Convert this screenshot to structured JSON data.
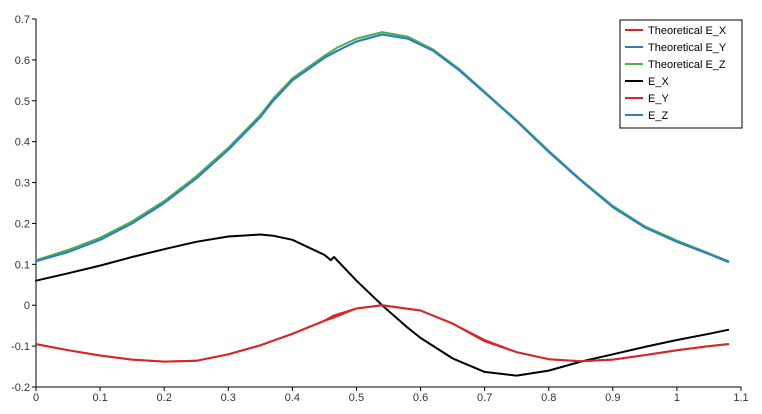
{
  "chart_data": {
    "type": "line",
    "xlim": [
      0,
      1.1
    ],
    "ylim": [
      -0.2,
      0.7
    ],
    "x_ticks": [
      "0",
      "0.1",
      "0.2",
      "0.3",
      "0.4",
      "0.5",
      "0.6",
      "0.7",
      "0.8",
      "0.9",
      "1",
      "1.1"
    ],
    "y_ticks": [
      "-0.2",
      "-0.1",
      "0",
      "0.1",
      "0.2",
      "0.3",
      "0.4",
      "0.5",
      "0.6",
      "0.7"
    ],
    "grid": false,
    "legend_position": "top-right",
    "series": [
      {
        "name": "Theoretical E_X",
        "color": "#d62728",
        "points": [
          [
            0,
            -0.095
          ],
          [
            0.05,
            -0.11
          ],
          [
            0.1,
            -0.123
          ],
          [
            0.15,
            -0.133
          ],
          [
            0.2,
            -0.138
          ],
          [
            0.25,
            -0.136
          ],
          [
            0.3,
            -0.12
          ],
          [
            0.35,
            -0.098
          ],
          [
            0.4,
            -0.07
          ],
          [
            0.45,
            -0.038
          ],
          [
            0.465,
            -0.025
          ],
          [
            0.5,
            -0.008
          ],
          [
            0.54,
            0.0
          ],
          [
            0.6,
            -0.013
          ],
          [
            0.65,
            -0.045
          ],
          [
            0.7,
            -0.085
          ],
          [
            0.75,
            -0.115
          ],
          [
            0.8,
            -0.132
          ],
          [
            0.85,
            -0.137
          ],
          [
            0.9,
            -0.133
          ],
          [
            0.95,
            -0.122
          ],
          [
            1.0,
            -0.11
          ],
          [
            1.05,
            -0.1
          ],
          [
            1.08,
            -0.095
          ]
        ]
      },
      {
        "name": "Theoretical E_Y",
        "color": "#2e7fc2",
        "points": [
          [
            0,
            0.108
          ],
          [
            0.05,
            0.13
          ],
          [
            0.1,
            0.16
          ],
          [
            0.15,
            0.2
          ],
          [
            0.2,
            0.25
          ],
          [
            0.25,
            0.31
          ],
          [
            0.3,
            0.38
          ],
          [
            0.35,
            0.46
          ],
          [
            0.37,
            0.5
          ],
          [
            0.4,
            0.55
          ],
          [
            0.45,
            0.605
          ],
          [
            0.47,
            0.622
          ],
          [
            0.5,
            0.645
          ],
          [
            0.54,
            0.662
          ],
          [
            0.58,
            0.652
          ],
          [
            0.62,
            0.622
          ],
          [
            0.66,
            0.575
          ],
          [
            0.7,
            0.52
          ],
          [
            0.75,
            0.45
          ],
          [
            0.8,
            0.375
          ],
          [
            0.85,
            0.305
          ],
          [
            0.9,
            0.24
          ],
          [
            0.95,
            0.19
          ],
          [
            1.0,
            0.155
          ],
          [
            1.05,
            0.125
          ],
          [
            1.08,
            0.106
          ]
        ]
      },
      {
        "name": "Theoretical E_Z",
        "color": "#4daf4a",
        "points": [
          [
            0,
            0.11
          ],
          [
            0.05,
            0.135
          ],
          [
            0.1,
            0.165
          ],
          [
            0.15,
            0.205
          ],
          [
            0.2,
            0.255
          ],
          [
            0.25,
            0.315
          ],
          [
            0.3,
            0.385
          ],
          [
            0.35,
            0.465
          ],
          [
            0.37,
            0.505
          ],
          [
            0.4,
            0.555
          ],
          [
            0.45,
            0.61
          ],
          [
            0.47,
            0.63
          ],
          [
            0.5,
            0.652
          ],
          [
            0.54,
            0.668
          ],
          [
            0.58,
            0.657
          ],
          [
            0.62,
            0.625
          ],
          [
            0.66,
            0.578
          ],
          [
            0.7,
            0.522
          ],
          [
            0.75,
            0.452
          ],
          [
            0.8,
            0.378
          ],
          [
            0.85,
            0.307
          ],
          [
            0.9,
            0.243
          ],
          [
            0.95,
            0.193
          ],
          [
            1.0,
            0.158
          ],
          [
            1.05,
            0.127
          ],
          [
            1.08,
            0.108
          ]
        ]
      },
      {
        "name": "E_X",
        "color": "#000000",
        "points": [
          [
            0,
            0.06
          ],
          [
            0.05,
            0.078
          ],
          [
            0.1,
            0.097
          ],
          [
            0.15,
            0.118
          ],
          [
            0.2,
            0.137
          ],
          [
            0.25,
            0.155
          ],
          [
            0.3,
            0.168
          ],
          [
            0.35,
            0.173
          ],
          [
            0.37,
            0.17
          ],
          [
            0.4,
            0.16
          ],
          [
            0.45,
            0.123
          ],
          [
            0.46,
            0.11
          ],
          [
            0.465,
            0.118
          ],
          [
            0.5,
            0.06
          ],
          [
            0.54,
            0.0
          ],
          [
            0.58,
            -0.055
          ],
          [
            0.6,
            -0.08
          ],
          [
            0.65,
            -0.13
          ],
          [
            0.7,
            -0.163
          ],
          [
            0.75,
            -0.172
          ],
          [
            0.8,
            -0.16
          ],
          [
            0.85,
            -0.138
          ],
          [
            0.9,
            -0.12
          ],
          [
            0.95,
            -0.102
          ],
          [
            1.0,
            -0.085
          ],
          [
            1.05,
            -0.07
          ],
          [
            1.08,
            -0.06
          ]
        ]
      },
      {
        "name": "E_Y",
        "color": "#d62728",
        "points": [
          [
            0,
            -0.095
          ],
          [
            0.05,
            -0.11
          ],
          [
            0.1,
            -0.123
          ],
          [
            0.15,
            -0.133
          ],
          [
            0.2,
            -0.138
          ],
          [
            0.25,
            -0.136
          ],
          [
            0.3,
            -0.12
          ],
          [
            0.35,
            -0.098
          ],
          [
            0.4,
            -0.07
          ],
          [
            0.45,
            -0.038
          ],
          [
            0.465,
            -0.03
          ],
          [
            0.5,
            -0.008
          ],
          [
            0.54,
            0.0
          ],
          [
            0.6,
            -0.013
          ],
          [
            0.65,
            -0.045
          ],
          [
            0.7,
            -0.088
          ],
          [
            0.75,
            -0.115
          ],
          [
            0.8,
            -0.132
          ],
          [
            0.85,
            -0.137
          ],
          [
            0.9,
            -0.133
          ],
          [
            0.95,
            -0.122
          ],
          [
            1.0,
            -0.11
          ],
          [
            1.05,
            -0.1
          ],
          [
            1.08,
            -0.095
          ]
        ]
      },
      {
        "name": "E_Z",
        "color": "#2e7fc2",
        "points": [
          [
            0,
            0.108
          ],
          [
            0.05,
            0.13
          ],
          [
            0.1,
            0.16
          ],
          [
            0.15,
            0.2
          ],
          [
            0.2,
            0.25
          ],
          [
            0.25,
            0.31
          ],
          [
            0.3,
            0.38
          ],
          [
            0.35,
            0.46
          ],
          [
            0.37,
            0.5
          ],
          [
            0.4,
            0.55
          ],
          [
            0.45,
            0.605
          ],
          [
            0.47,
            0.622
          ],
          [
            0.5,
            0.645
          ],
          [
            0.54,
            0.662
          ],
          [
            0.58,
            0.652
          ],
          [
            0.62,
            0.622
          ],
          [
            0.66,
            0.575
          ],
          [
            0.7,
            0.52
          ],
          [
            0.75,
            0.45
          ],
          [
            0.8,
            0.375
          ],
          [
            0.85,
            0.305
          ],
          [
            0.9,
            0.24
          ],
          [
            0.95,
            0.19
          ],
          [
            1.0,
            0.155
          ],
          [
            1.05,
            0.125
          ],
          [
            1.08,
            0.106
          ]
        ]
      }
    ]
  }
}
